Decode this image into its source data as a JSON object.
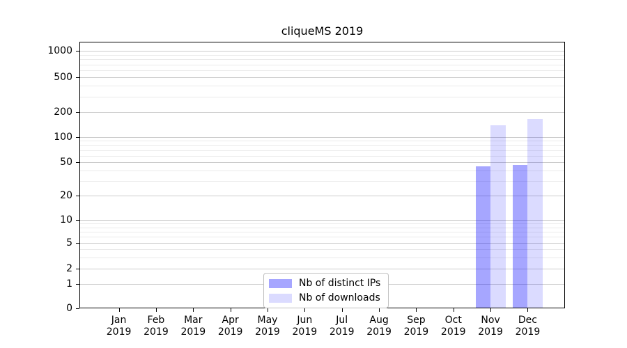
{
  "chart_data": {
    "type": "bar",
    "title": "cliqueMS 2019",
    "x_categories": [
      "Jan",
      "Feb",
      "Mar",
      "Apr",
      "May",
      "Jun",
      "Jul",
      "Aug",
      "Sep",
      "Oct",
      "Nov",
      "Dec"
    ],
    "x_year": "2019",
    "series": [
      {
        "name": "Nb of distinct IPs",
        "color": "#0000ff",
        "alpha": 0.35,
        "values": [
          0,
          0,
          0,
          0,
          0,
          0,
          0,
          0,
          0,
          0,
          45,
          46
        ]
      },
      {
        "name": "Nb of downloads",
        "color": "#0000ff",
        "alpha": 0.14,
        "values": [
          0,
          0,
          0,
          0,
          0,
          0,
          0,
          0,
          0,
          0,
          138,
          166
        ]
      }
    ],
    "yscale": "log-with-zero",
    "yticks": [
      {
        "label": "0",
        "value": 0,
        "y": 383
      },
      {
        "label": "1",
        "value": 1,
        "y": 348
      },
      {
        "label": "2",
        "value": 2,
        "y": 326
      },
      {
        "label": "5",
        "value": 5,
        "y": 289
      },
      {
        "label": "10",
        "value": 10,
        "y": 256
      },
      {
        "label": "20",
        "value": 20,
        "y": 221
      },
      {
        "label": "50",
        "value": 50,
        "y": 173
      },
      {
        "label": "100",
        "value": 100,
        "y": 137
      },
      {
        "label": "200",
        "value": 200,
        "y": 101
      },
      {
        "label": "500",
        "value": 500,
        "y": 51
      },
      {
        "label": "1000",
        "value": 1000,
        "y": 13
      }
    ],
    "y_minor_values": [
      3,
      4,
      6,
      7,
      8,
      9,
      30,
      40,
      60,
      70,
      80,
      90,
      300,
      400,
      600,
      700,
      800,
      900
    ],
    "grid": true,
    "legend": {
      "position": "lower center"
    }
  }
}
